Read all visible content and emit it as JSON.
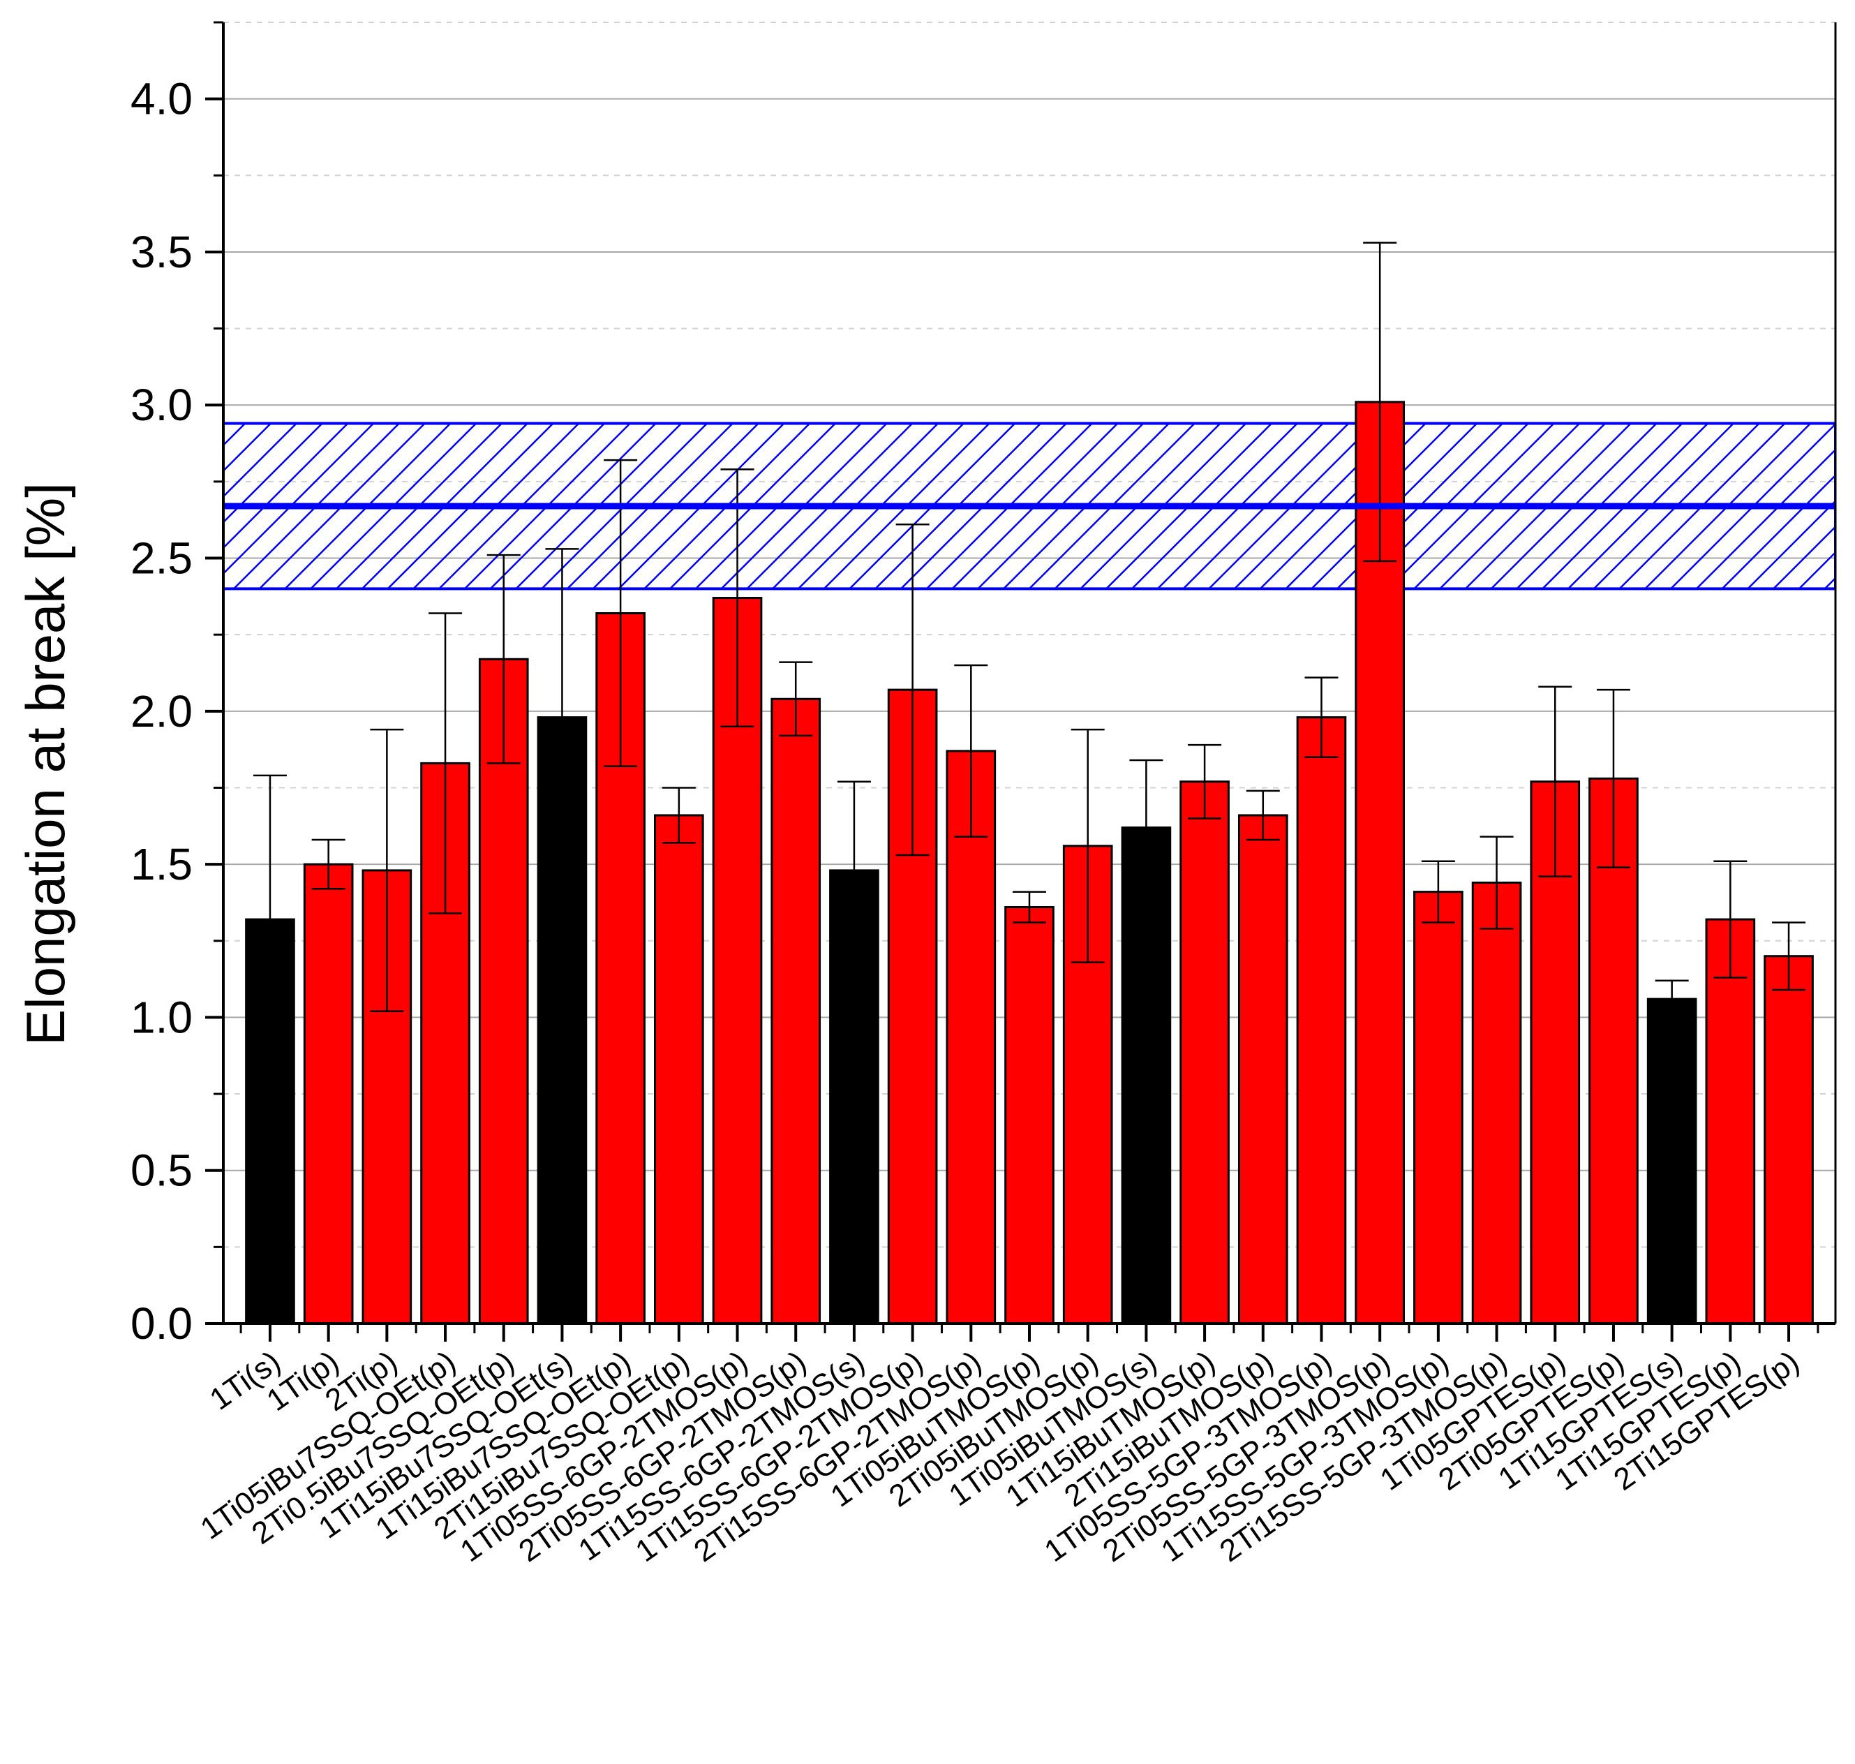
{
  "chart_data": {
    "type": "bar",
    "title": "",
    "xlabel": "",
    "ylabel": "Elongation at break [%]",
    "ylim": [
      0,
      4.25
    ],
    "yticks": [
      0.0,
      0.5,
      1.0,
      1.5,
      2.0,
      2.5,
      3.0,
      3.5,
      4.0
    ],
    "ytick_labels": [
      "0.0",
      "0.5",
      "1.0",
      "1.5",
      "2.0",
      "2.5",
      "3.0",
      "3.5",
      "4.0"
    ],
    "minor_gridlines": true,
    "categories": [
      "1Ti(s)",
      "1Ti(p)",
      "2Ti(p)",
      "1Ti05iBu7SSQ-OEt(p)",
      "2Ti0.5iBu7SSQ-OEt(p)",
      "1Ti15iBu7SSQ-OEt(s)",
      "1Ti15iBu7SSQ-OEt(p)",
      "2Ti15iBu7SSQ-OEt(p)",
      "1Ti05SS-6GP-2TMOS(p)",
      "2Ti05SS-6GP-2TMOS(p)",
      "1Ti15SS-6GP-2TMOS(s)",
      "1Ti15SS-6GP-2TMOS(p)",
      "2Ti15SS-6GP-2TMOS(p)",
      "1Ti05iBuTMOS(p)",
      "2Ti05iBuTMOS(p)",
      "1Ti05iBuTMOS(s)",
      "1Ti15iBuTMOS(p)",
      "2Ti15iBuTMOS(p)",
      "1Ti05SS-5GP-3TMOS(p)",
      "2Ti05SS-5GP-3TMOS(p)",
      "1Ti15SS-5GP-3TMOS(p)",
      "2Ti15SS-5GP-3TMOS(p)",
      "1Ti05GPTES(p)",
      "2Ti05GPTES(p)",
      "1Ti15GPTES(s)",
      "1Ti15GPTES(p)",
      "2Ti15GPTES(p)"
    ],
    "values": [
      1.32,
      1.5,
      1.48,
      1.83,
      2.17,
      1.98,
      2.32,
      1.66,
      2.37,
      2.04,
      1.48,
      2.07,
      1.87,
      1.36,
      1.56,
      1.62,
      1.77,
      1.66,
      1.98,
      3.01,
      1.41,
      1.44,
      1.77,
      1.78,
      1.06,
      1.32,
      1.2
    ],
    "error": [
      0.47,
      0.08,
      0.46,
      0.49,
      0.34,
      0.55,
      0.5,
      0.09,
      0.42,
      0.12,
      0.29,
      0.54,
      0.28,
      0.05,
      0.38,
      0.22,
      0.12,
      0.08,
      0.13,
      0.52,
      0.1,
      0.15,
      0.31,
      0.29,
      0.06,
      0.19,
      0.11
    ],
    "bar_colors": [
      "#000000",
      "#ff0000",
      "#ff0000",
      "#ff0000",
      "#ff0000",
      "#000000",
      "#ff0000",
      "#ff0000",
      "#ff0000",
      "#ff0000",
      "#000000",
      "#ff0000",
      "#ff0000",
      "#ff0000",
      "#ff0000",
      "#000000",
      "#ff0000",
      "#ff0000",
      "#ff0000",
      "#ff0000",
      "#ff0000",
      "#ff0000",
      "#ff0000",
      "#ff0000",
      "#000000",
      "#ff0000",
      "#ff0000"
    ],
    "reference_band": {
      "mean": 2.67,
      "lower": 2.4,
      "upper": 2.94,
      "color": "#0000ff",
      "fill": "hatched"
    }
  }
}
